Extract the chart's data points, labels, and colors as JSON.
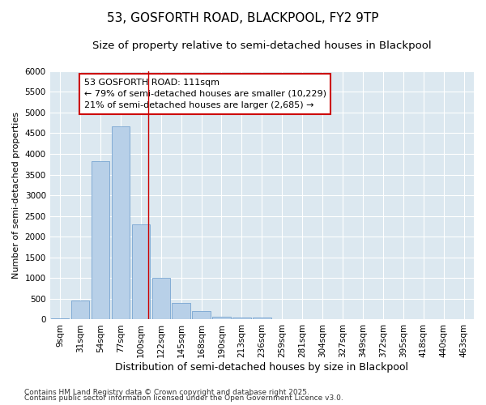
{
  "title1": "53, GOSFORTH ROAD, BLACKPOOL, FY2 9TP",
  "title2": "Size of property relative to semi-detached houses in Blackpool",
  "xlabel": "Distribution of semi-detached houses by size in Blackpool",
  "ylabel": "Number of semi-detached properties",
  "categories": [
    "9sqm",
    "31sqm",
    "54sqm",
    "77sqm",
    "100sqm",
    "122sqm",
    "145sqm",
    "168sqm",
    "190sqm",
    "213sqm",
    "236sqm",
    "259sqm",
    "281sqm",
    "304sqm",
    "327sqm",
    "349sqm",
    "372sqm",
    "395sqm",
    "418sqm",
    "440sqm",
    "463sqm"
  ],
  "values": [
    30,
    460,
    3820,
    4670,
    2300,
    1000,
    410,
    200,
    75,
    55,
    55,
    0,
    0,
    0,
    0,
    0,
    0,
    0,
    0,
    0,
    0
  ],
  "bar_color": "#b8d0e8",
  "bar_edgecolor": "#6699cc",
  "vline_x": 4.35,
  "vline_color": "#cc0000",
  "annotation_text": "53 GOSFORTH ROAD: 111sqm\n← 79% of semi-detached houses are smaller (10,229)\n21% of semi-detached houses are larger (2,685) →",
  "annotation_box_facecolor": "#ffffff",
  "annotation_box_edgecolor": "#cc0000",
  "ylim": [
    0,
    6000
  ],
  "yticks": [
    0,
    500,
    1000,
    1500,
    2000,
    2500,
    3000,
    3500,
    4000,
    4500,
    5000,
    5500,
    6000
  ],
  "background_color": "#dce8f0",
  "grid_color": "#ffffff",
  "figure_facecolor": "#ffffff",
  "footer1": "Contains HM Land Registry data © Crown copyright and database right 2025.",
  "footer2": "Contains public sector information licensed under the Open Government Licence v3.0.",
  "title1_fontsize": 11,
  "title2_fontsize": 9.5,
  "xlabel_fontsize": 9,
  "ylabel_fontsize": 8,
  "tick_fontsize": 7.5,
  "annotation_fontsize": 8,
  "footer_fontsize": 6.5
}
